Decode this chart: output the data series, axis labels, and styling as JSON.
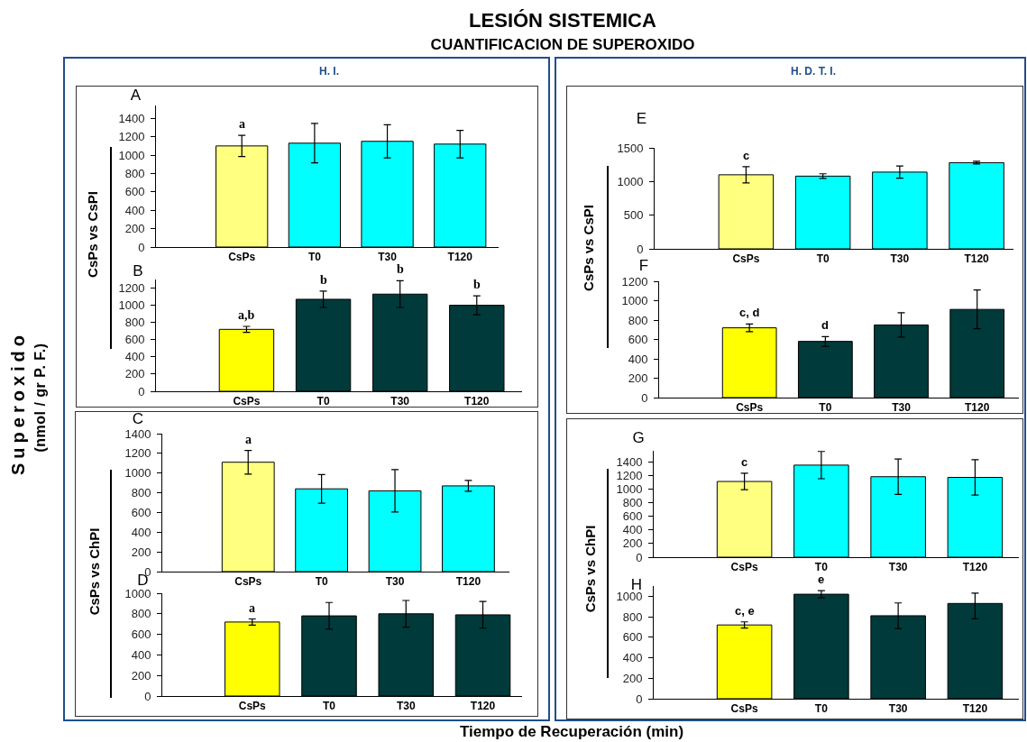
{
  "chart_data": [
    {
      "type": "other",
      "title": "LESIÓN SISTEMICA",
      "subtitle": "CUANTIFICACION DE SUPEROXIDO",
      "xlabel": "Tiempo de Recuperación (min)",
      "ylabel": "Superoxido",
      "annotations": [
        "(nmol / gr P. F.)",
        "H. I.",
        "H. D. T. I."
      ]
    },
    {
      "type": "bar",
      "title": "A",
      "ylabel": "CsPs vs CsPI",
      "categories": [
        "CsPs",
        "T0",
        "T30",
        "T120"
      ],
      "values": [
        1100,
        1130,
        1150,
        1120
      ],
      "colors": [
        "#ffff80",
        "#00ffff",
        "#00ffff",
        "#00ffff"
      ],
      "errors": [
        115,
        215,
        180,
        150
      ],
      "value_labels": [
        "a",
        null,
        null,
        null
      ],
      "ylim": [
        0,
        1540
      ],
      "yticks": [
        0,
        200,
        400,
        600,
        800,
        1000,
        1200,
        1400
      ]
    },
    {
      "type": "bar",
      "title": "B",
      "categories": [
        "CsPs",
        "T0",
        "T30",
        "T120"
      ],
      "values": [
        720,
        1070,
        1130,
        1000
      ],
      "colors": [
        "#ffff00",
        "#003a3a",
        "#003a3a",
        "#003a3a"
      ],
      "errors": [
        35,
        95,
        155,
        110
      ],
      "value_labels": [
        "a,b",
        "b",
        "b",
        "b"
      ],
      "ylim": [
        0,
        1300
      ],
      "yticks": [
        0,
        200,
        400,
        600,
        800,
        1000,
        1200
      ]
    },
    {
      "type": "bar",
      "title": "C",
      "ylabel": "CsPs vs ChPI",
      "categories": [
        "CsPs",
        "T0",
        "T30",
        "T120"
      ],
      "values": [
        1110,
        840,
        820,
        870
      ],
      "colors": [
        "#ffff80",
        "#00ffff",
        "#00ffff",
        "#00ffff"
      ],
      "errors": [
        120,
        145,
        215,
        55
      ],
      "value_labels": [
        "a",
        null,
        null,
        null
      ],
      "ylim": [
        0,
        1400
      ],
      "yticks": [
        0,
        200,
        400,
        600,
        800,
        1000,
        1200,
        1400
      ]
    },
    {
      "type": "bar",
      "title": "D",
      "categories": [
        "CsPs",
        "T0",
        "T30",
        "T120"
      ],
      "values": [
        720,
        780,
        800,
        790
      ],
      "colors": [
        "#ffff00",
        "#003a3a",
        "#003a3a",
        "#003a3a"
      ],
      "errors": [
        30,
        130,
        130,
        130
      ],
      "value_labels": [
        "a",
        null,
        null,
        null
      ],
      "ylim": [
        0,
        1000
      ],
      "yticks": [
        0,
        200,
        400,
        600,
        800,
        1000
      ]
    },
    {
      "type": "bar",
      "title": "E",
      "ylabel": "CsPs vs CsPI",
      "categories": [
        "CsPs",
        "T0",
        "T30",
        "T120"
      ],
      "values": [
        1100,
        1080,
        1140,
        1280
      ],
      "colors": [
        "#ffff80",
        "#00ffff",
        "#00ffff",
        "#00ffff"
      ],
      "errors": [
        120,
        35,
        90,
        20
      ],
      "value_labels": [
        "c",
        null,
        null,
        null
      ],
      "ylim": [
        0,
        1500
      ],
      "yticks": [
        0,
        500,
        1000,
        1500
      ]
    },
    {
      "type": "bar",
      "title": "F",
      "categories": [
        "CsPs",
        "T0",
        "T30",
        "T120"
      ],
      "values": [
        720,
        580,
        750,
        910
      ],
      "colors": [
        "#ffff00",
        "#003a3a",
        "#003a3a",
        "#003a3a"
      ],
      "errors": [
        40,
        50,
        125,
        200
      ],
      "value_labels": [
        "c, d",
        "d",
        null,
        null
      ],
      "ylim": [
        0,
        1200
      ],
      "yticks": [
        0,
        200,
        400,
        600,
        800,
        1000,
        1200
      ]
    },
    {
      "type": "bar",
      "title": "G",
      "ylabel": "CsPs vs ChPI",
      "categories": [
        "CsPs",
        "T0",
        "T30",
        "T120"
      ],
      "values": [
        1110,
        1350,
        1180,
        1170
      ],
      "colors": [
        "#ffff80",
        "#00ffff",
        "#00ffff",
        "#00ffff"
      ],
      "errors": [
        120,
        200,
        260,
        260
      ],
      "value_labels": [
        "c",
        null,
        null,
        null
      ],
      "ylim": [
        0,
        1560
      ],
      "yticks": [
        0,
        200,
        400,
        600,
        800,
        1000,
        1200,
        1400
      ]
    },
    {
      "type": "bar",
      "title": "H",
      "categories": [
        "CsPs",
        "T0",
        "T30",
        "T120"
      ],
      "values": [
        720,
        1020,
        810,
        930
      ],
      "colors": [
        "#ffff00",
        "#003a3a",
        "#003a3a",
        "#003a3a"
      ],
      "errors": [
        30,
        35,
        125,
        [
          780,
          1030
        ]
      ],
      "value_labels": [
        "c, e",
        "e",
        null,
        null
      ],
      "ylim": [
        0,
        1100
      ],
      "yticks": [
        0,
        200,
        400,
        600,
        800,
        1000
      ]
    }
  ]
}
